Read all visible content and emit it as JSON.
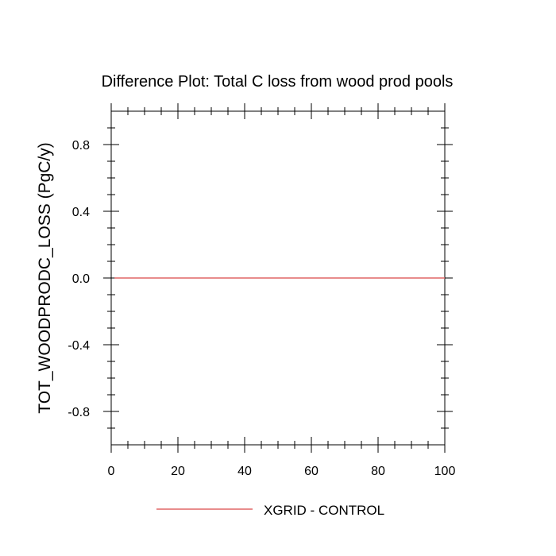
{
  "chart_data": {
    "type": "line",
    "title": "Difference Plot: Total C loss from wood prod pools",
    "xlabel": "",
    "ylabel": "TOT_WOODPRODC_LOSS  (PgC/y)",
    "xlim": [
      0,
      100
    ],
    "ylim": [
      -1.0,
      1.0
    ],
    "x_ticks": [
      0,
      20,
      40,
      60,
      80,
      100
    ],
    "x_tick_labels": [
      "0",
      "20",
      "40",
      "60",
      "80",
      "100"
    ],
    "y_ticks": [
      -0.8,
      -0.4,
      0.0,
      0.4,
      0.8
    ],
    "y_tick_labels": [
      "-0.8",
      "-0.4",
      "0.0",
      "0.4",
      "0.8"
    ],
    "grid": false,
    "legend_position": "bottom",
    "series": [
      {
        "name": "XGRID - CONTROL",
        "color": "#e06666",
        "x": [
          1,
          100
        ],
        "y": [
          0.0,
          0.0
        ]
      }
    ]
  }
}
